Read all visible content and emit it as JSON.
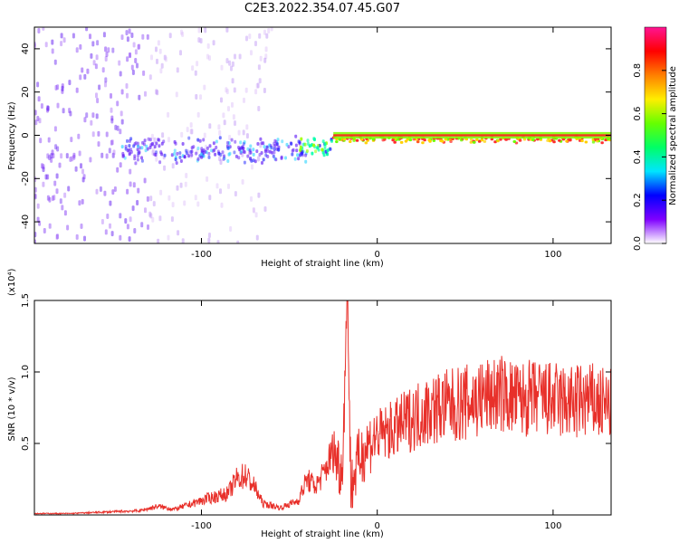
{
  "title": "C2E3.2022.354.07.45.G07",
  "chart_data": [
    {
      "type": "heatmap",
      "name": "spectrogram",
      "xlabel": "Height of straight line (km)",
      "ylabel": "Frequency (Hz)",
      "xlim": [
        -195,
        133
      ],
      "ylim": [
        -50,
        50
      ],
      "x_ticks": [
        -100,
        0,
        100
      ],
      "y_ticks": [
        -40,
        -20,
        0,
        20,
        40
      ],
      "colorbar": {
        "label": "Normalized spectral amplitude",
        "range": [
          0,
          1
        ],
        "ticks": [
          0.0,
          0.2,
          0.4,
          0.6,
          0.8
        ],
        "colors": [
          "#ffffff",
          "#7f00ff",
          "#0000ff",
          "#00e5ff",
          "#00ff66",
          "#66ff00",
          "#ffee00",
          "#ff7f00",
          "#ff0000",
          "#ff1493"
        ]
      },
      "regions": [
        {
          "x": [
            -195,
            -130
          ],
          "freq_spread": [
            -50,
            50
          ],
          "amplitude": 0.12,
          "note_color": "#7b2cf5"
        },
        {
          "x": [
            -130,
            -60
          ],
          "freq_spread": [
            -50,
            50
          ],
          "amplitude": 0.05,
          "note_color": "#c79bf2"
        },
        {
          "x": [
            -145,
            -40
          ],
          "freq_spread": [
            -7,
            7
          ],
          "amplitude": 0.25,
          "note_color": "#4b1dfa"
        },
        {
          "x": [
            -45,
            -25
          ],
          "freq_spread": [
            -5,
            5
          ],
          "amplitude": 0.5,
          "note_color": "#00ffaa"
        },
        {
          "x": [
            -25,
            133
          ],
          "freq_spread": [
            -2,
            2
          ],
          "amplitude": 0.85,
          "note_color": "#ff3030"
        }
      ]
    },
    {
      "type": "line",
      "name": "snr",
      "xlabel": "Height of straight line (km)",
      "ylabel": "SNR (10 * v/v)",
      "y_scale_label": "(x10⁴)",
      "xlim": [
        -195,
        133
      ],
      "ylim": [
        0,
        1.5
      ],
      "x_ticks": [
        -100,
        0,
        100
      ],
      "y_ticks": [
        0.5,
        1.0,
        1.5
      ],
      "color": "#e8302a",
      "x": [
        -195,
        -175,
        -155,
        -135,
        -125,
        -115,
        -105,
        -95,
        -85,
        -80,
        -75,
        -70,
        -65,
        -55,
        -45,
        -40,
        -35,
        -30,
        -25,
        -20,
        -17,
        -15,
        -10,
        -5,
        0,
        10,
        20,
        30,
        40,
        50,
        60,
        70,
        80,
        90,
        100,
        110,
        120,
        133
      ],
      "y": [
        0.01,
        0.01,
        0.02,
        0.03,
        0.06,
        0.04,
        0.08,
        0.12,
        0.15,
        0.25,
        0.28,
        0.2,
        0.08,
        0.05,
        0.1,
        0.25,
        0.2,
        0.3,
        0.45,
        0.3,
        1.5,
        0.2,
        0.4,
        0.5,
        0.55,
        0.6,
        0.68,
        0.74,
        0.76,
        0.78,
        0.82,
        0.85,
        0.8,
        0.82,
        0.8,
        0.78,
        0.8,
        0.75
      ]
    }
  ]
}
